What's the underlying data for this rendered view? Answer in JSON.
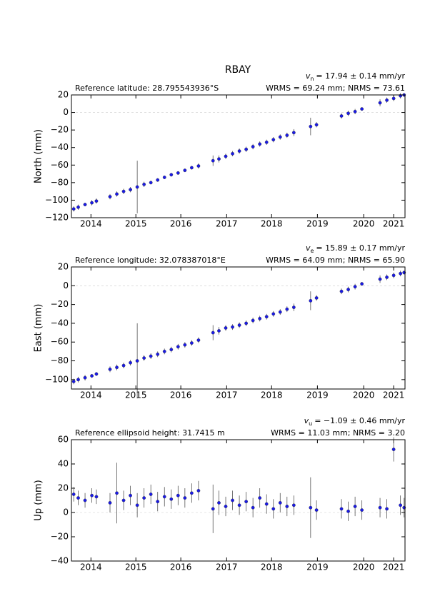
{
  "title": "RBAY",
  "chart_data": [
    {
      "type": "scatter",
      "ylabel": "North (mm)",
      "reference": "Reference latitude: 28.795543936°S",
      "velocity_symbol": "v",
      "velocity_subscript": "n",
      "velocity_text": "= 17.94 ± 0.14 mm/yr",
      "stats": "WRMS = 69.24 mm; NRMS = 73.61",
      "x": [
        2013.6,
        2013.7,
        2013.85,
        2014.0,
        2014.1,
        2014.4,
        2014.55,
        2014.7,
        2014.85,
        2015.0,
        2015.15,
        2015.3,
        2015.45,
        2015.6,
        2015.75,
        2015.9,
        2016.05,
        2016.2,
        2016.35,
        2016.67,
        2016.8,
        2016.95,
        2017.1,
        2017.25,
        2017.4,
        2017.55,
        2017.7,
        2017.85,
        2018.0,
        2018.15,
        2018.3,
        2018.45,
        2018.82,
        2018.95,
        2019.5,
        2019.65,
        2019.8,
        2019.95,
        2020.35,
        2020.5,
        2020.65,
        2020.8,
        2020.88
      ],
      "values": [
        -110,
        -108,
        -105,
        -103,
        -101,
        -96,
        -93,
        -90,
        -88,
        -85,
        -82,
        -80,
        -77,
        -74,
        -71,
        -69,
        -66,
        -63,
        -61,
        -55,
        -53,
        -50,
        -47,
        -44,
        -42,
        -39,
        -36,
        -34,
        -31,
        -28,
        -26,
        -23,
        -16,
        -14,
        -4,
        -1,
        1,
        4,
        11,
        14,
        16,
        19,
        20
      ],
      "errors": [
        3,
        3,
        2,
        3,
        3,
        3,
        3,
        3,
        3,
        30,
        3,
        2,
        2,
        2,
        2,
        2,
        2,
        2,
        3,
        6,
        4,
        3,
        3,
        3,
        3,
        3,
        3,
        3,
        3,
        3,
        3,
        4,
        10,
        3,
        3,
        3,
        3,
        2,
        4,
        3,
        3,
        3,
        2
      ],
      "color": "#1a1ae6",
      "error_color": "#555555",
      "xlim": [
        2013.55,
        2020.9
      ],
      "xticks": [
        {
          "value": 2013.98,
          "label": "2014"
        },
        {
          "value": 2014.97,
          "label": "2015"
        },
        {
          "value": 2015.96,
          "label": "2016"
        },
        {
          "value": 2016.97,
          "label": "2017"
        },
        {
          "value": 2017.96,
          "label": "2018"
        },
        {
          "value": 2018.97,
          "label": "2019"
        },
        {
          "value": 2019.99,
          "label": "2020"
        },
        {
          "value": 2020.65,
          "label": "2021"
        }
      ],
      "ylim": [
        -120,
        20
      ],
      "yticks": [
        {
          "value": -120,
          "label": "−120"
        },
        {
          "value": -100,
          "label": "−100"
        },
        {
          "value": -80,
          "label": "−80"
        },
        {
          "value": -60,
          "label": "−60"
        },
        {
          "value": -40,
          "label": "−40"
        },
        {
          "value": -20,
          "label": "−20"
        },
        0,
        20
      ],
      "zero_line": true
    },
    {
      "type": "scatter",
      "ylabel": "East (mm)",
      "reference": "Reference longitude: 32.078387018°E",
      "velocity_symbol": "v",
      "velocity_subscript": "e",
      "velocity_text": "= 15.89 ± 0.17 mm/yr",
      "stats": "WRMS = 64.09 mm; NRMS = 65.90",
      "x": [
        2013.6,
        2013.7,
        2013.85,
        2014.0,
        2014.1,
        2014.4,
        2014.55,
        2014.7,
        2014.85,
        2015.0,
        2015.15,
        2015.3,
        2015.45,
        2015.6,
        2015.75,
        2015.9,
        2016.05,
        2016.2,
        2016.35,
        2016.67,
        2016.8,
        2016.95,
        2017.1,
        2017.25,
        2017.4,
        2017.55,
        2017.7,
        2017.85,
        2018.0,
        2018.15,
        2018.3,
        2018.45,
        2018.82,
        2018.95,
        2019.5,
        2019.65,
        2019.8,
        2019.95,
        2020.35,
        2020.5,
        2020.65,
        2020.8,
        2020.88
      ],
      "values": [
        -102,
        -100,
        -98,
        -96,
        -94,
        -89,
        -87,
        -85,
        -82,
        -80,
        -77,
        -75,
        -73,
        -70,
        -68,
        -65,
        -63,
        -61,
        -58,
        -50,
        -48,
        -45,
        -44,
        -42,
        -40,
        -37,
        -35,
        -33,
        -30,
        -28,
        -25,
        -23,
        -16,
        -13,
        -6,
        -4,
        -1,
        2,
        7,
        9,
        11,
        13,
        14
      ],
      "errors": [
        3,
        3,
        3,
        2,
        2,
        3,
        3,
        3,
        3,
        40,
        3,
        3,
        3,
        3,
        3,
        3,
        3,
        3,
        3,
        8,
        4,
        3,
        3,
        3,
        3,
        3,
        3,
        3,
        3,
        3,
        3,
        4,
        10,
        3,
        3,
        3,
        3,
        2,
        4,
        3,
        3,
        3,
        2
      ],
      "color": "#1a1ae6",
      "error_color": "#555555",
      "xlim": [
        2013.55,
        2020.9
      ],
      "xticks": [
        {
          "value": 2013.98,
          "label": "2014"
        },
        {
          "value": 2014.97,
          "label": "2015"
        },
        {
          "value": 2015.96,
          "label": "2016"
        },
        {
          "value": 2016.97,
          "label": "2017"
        },
        {
          "value": 2017.96,
          "label": "2018"
        },
        {
          "value": 2018.97,
          "label": "2019"
        },
        {
          "value": 2019.99,
          "label": "2020"
        },
        {
          "value": 2020.65,
          "label": "2021"
        }
      ],
      "ylim": [
        -110,
        20
      ],
      "yticks": [
        {
          "value": -100,
          "label": "−100"
        },
        {
          "value": -80,
          "label": "−80"
        },
        {
          "value": -60,
          "label": "−60"
        },
        {
          "value": -40,
          "label": "−40"
        },
        {
          "value": -20,
          "label": "−20"
        },
        0,
        20
      ],
      "zero_line": true
    },
    {
      "type": "scatter",
      "ylabel": "Up (mm)",
      "reference": "Reference ellipsoid height: 31.7415 m",
      "velocity_symbol": "v",
      "velocity_subscript": "u",
      "velocity_text": "= −1.09 ± 0.46 mm/yr",
      "stats": "WRMS = 11.03 mm; NRMS = 3.20",
      "x": [
        2013.6,
        2013.7,
        2013.85,
        2014.0,
        2014.1,
        2014.4,
        2014.55,
        2014.7,
        2014.85,
        2015.0,
        2015.15,
        2015.3,
        2015.45,
        2015.6,
        2015.75,
        2015.9,
        2016.05,
        2016.2,
        2016.35,
        2016.67,
        2016.8,
        2016.95,
        2017.1,
        2017.25,
        2017.4,
        2017.55,
        2017.7,
        2017.85,
        2018.0,
        2018.15,
        2018.3,
        2018.45,
        2018.82,
        2018.95,
        2019.5,
        2019.65,
        2019.8,
        2019.95,
        2020.35,
        2020.5,
        2020.65,
        2020.8,
        2020.88
      ],
      "values": [
        15,
        12,
        10,
        14,
        13,
        8,
        16,
        10,
        14,
        6,
        12,
        15,
        9,
        13,
        11,
        14,
        12,
        16,
        18,
        3,
        8,
        5,
        10,
        6,
        9,
        4,
        12,
        7,
        3,
        8,
        5,
        6,
        4,
        2,
        3,
        1,
        5,
        2,
        4,
        3,
        52,
        6,
        4
      ],
      "errors": [
        6,
        6,
        6,
        6,
        6,
        8,
        25,
        8,
        8,
        10,
        8,
        8,
        8,
        8,
        8,
        8,
        8,
        8,
        8,
        20,
        10,
        8,
        8,
        8,
        8,
        8,
        8,
        8,
        8,
        8,
        8,
        8,
        25,
        8,
        8,
        8,
        8,
        8,
        8,
        8,
        10,
        8,
        8
      ],
      "color": "#1a1ae6",
      "error_color": "#555555",
      "xlim": [
        2013.55,
        2020.9
      ],
      "xticks": [
        {
          "value": 2013.98,
          "label": "2014"
        },
        {
          "value": 2014.97,
          "label": "2015"
        },
        {
          "value": 2015.96,
          "label": "2016"
        },
        {
          "value": 2016.97,
          "label": "2017"
        },
        {
          "value": 2017.96,
          "label": "2018"
        },
        {
          "value": 2018.97,
          "label": "2019"
        },
        {
          "value": 2019.99,
          "label": "2020"
        },
        {
          "value": 2020.65,
          "label": "2021"
        }
      ],
      "ylim": [
        -40,
        60
      ],
      "yticks": [
        {
          "value": -40,
          "label": "−40"
        },
        {
          "value": -20,
          "label": "−20"
        },
        0,
        20,
        40,
        60
      ],
      "zero_line": true
    }
  ]
}
